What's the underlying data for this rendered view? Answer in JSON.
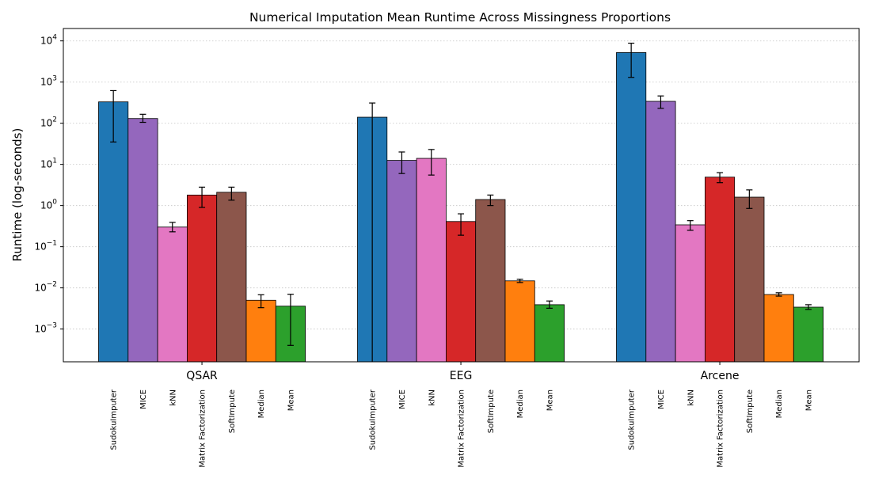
{
  "chart_data": {
    "type": "bar",
    "title": "Numerical Imputation Mean Runtime Across Missingness Proportions",
    "ylabel": "Runtime (log-seconds)",
    "xlabel": "",
    "yscale": "log",
    "ylim": [
      0.00016,
      20000
    ],
    "yticks": [
      0.001,
      0.01,
      0.1,
      1,
      10,
      100,
      1000,
      10000
    ],
    "ytick_labels": [
      {
        "base": "10",
        "exp": "−3"
      },
      {
        "base": "10",
        "exp": "−2"
      },
      {
        "base": "10",
        "exp": "−1"
      },
      {
        "base": "10",
        "exp": "0"
      },
      {
        "base": "10",
        "exp": "1"
      },
      {
        "base": "10",
        "exp": "2"
      },
      {
        "base": "10",
        "exp": "3"
      },
      {
        "base": "10",
        "exp": "4"
      }
    ],
    "grid": "y, dotted",
    "categories": [
      "QSAR",
      "EEG",
      "Arcene"
    ],
    "series": [
      {
        "name": "SudokuImputer",
        "color": "#1f77b4",
        "values": [
          330,
          140,
          5200
        ],
        "err_low": [
          35,
          0.00016,
          1300
        ],
        "err_high": [
          620,
          310,
          8800
        ]
      },
      {
        "name": "MICE",
        "color": "#9467bd",
        "values": [
          130,
          12.5,
          340
        ],
        "err_low": [
          105,
          6.0,
          230
        ],
        "err_high": [
          165,
          20,
          460
        ]
      },
      {
        "name": "kNN",
        "color": "#e377c2",
        "values": [
          0.3,
          14,
          0.34
        ],
        "err_low": [
          0.23,
          5.5,
          0.25
        ],
        "err_high": [
          0.39,
          23,
          0.43
        ]
      },
      {
        "name": "Matrix Factorization",
        "color": "#d62728",
        "values": [
          1.8,
          0.41,
          4.9
        ],
        "err_low": [
          0.9,
          0.19,
          3.6
        ],
        "err_high": [
          2.8,
          0.63,
          6.3
        ]
      },
      {
        "name": "SoftImpute",
        "color": "#8c564b",
        "values": [
          2.1,
          1.4,
          1.6
        ],
        "err_low": [
          1.35,
          1.0,
          0.85
        ],
        "err_high": [
          2.8,
          1.8,
          2.4
        ]
      },
      {
        "name": "Median",
        "color": "#ff7f0e",
        "values": [
          0.005,
          0.0148,
          0.0069
        ],
        "err_low": [
          0.0033,
          0.0135,
          0.0063
        ],
        "err_high": [
          0.0068,
          0.0162,
          0.0076
        ]
      },
      {
        "name": "Mean",
        "color": "#2ca02c",
        "values": [
          0.0036,
          0.0039,
          0.0034
        ],
        "err_low": [
          0.0004,
          0.0032,
          0.003
        ],
        "err_high": [
          0.007,
          0.0048,
          0.0039
        ]
      }
    ]
  }
}
